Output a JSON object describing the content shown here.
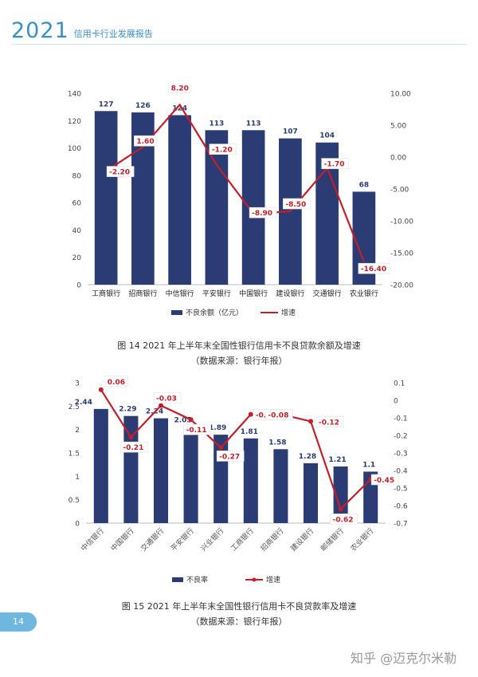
{
  "header": {
    "year": "2021",
    "report_title": "信用卡行业发展报告"
  },
  "colors": {
    "bar": "#2b3b74",
    "line": "#c0202b",
    "accent": "#3a8fc6"
  },
  "chart_data": [
    {
      "type": "bar",
      "categories": [
        "工商银行",
        "招商银行",
        "中信银行",
        "平安银行",
        "中国银行",
        "建设银行",
        "交通银行",
        "农业银行"
      ],
      "series": [
        {
          "name": "不良余额（亿元）",
          "type": "bar",
          "axis": "left",
          "values": [
            127,
            126,
            124,
            113,
            113,
            107,
            104,
            68
          ],
          "labels": [
            "127",
            "126",
            "124",
            "113",
            "113",
            "107",
            "104",
            "68"
          ]
        },
        {
          "name": "增速",
          "type": "line",
          "axis": "right",
          "values": [
            -2.2,
            1.6,
            8.2,
            -1.2,
            -8.9,
            -8.5,
            -1.7,
            -16.4
          ],
          "labels": [
            "-2.20",
            "1.60",
            "8.20",
            "-1.20",
            "-8.90",
            "-8.50",
            "-1.70",
            "-16.40"
          ]
        }
      ],
      "ylim": [
        0,
        140
      ],
      "yticks": [
        "0",
        "20",
        "40",
        "60",
        "80",
        "100",
        "120",
        "140"
      ],
      "y2lim": [
        -20,
        10
      ],
      "y2ticks": [
        "-20.00",
        "-15.00",
        "-10.00",
        "-5.00",
        "0.00",
        "5.00",
        "10.00"
      ],
      "legend": "bottom",
      "caption": "图 14 2021 年上半年末全国性银行信用卡不良贷款余额及增速",
      "source": "（数据来源：银行年报）"
    },
    {
      "type": "bar",
      "categories": [
        "中信银行",
        "中国银行",
        "交通银行",
        "平安银行",
        "兴业银行",
        "工商银行",
        "招商银行",
        "建设银行",
        "邮储银行",
        "农业银行"
      ],
      "series": [
        {
          "name": "不良率",
          "type": "bar",
          "axis": "left",
          "values": [
            2.44,
            2.29,
            2.24,
            2.05,
            1.89,
            1.81,
            1.58,
            1.28,
            1.21,
            1.1
          ],
          "labels": [
            "2.44",
            "2.29",
            "2.24",
            "2.05",
            "1.89",
            "1.81",
            "1.58",
            "1.28",
            "1.21",
            "1.1"
          ]
        },
        {
          "name": "增速",
          "type": "line",
          "axis": "right",
          "values": [
            0.06,
            -0.21,
            -0.03,
            -0.11,
            -0.27,
            -0.08,
            -0.08,
            -0.12,
            -0.62,
            -0.45
          ],
          "labels": [
            "0.06",
            "-0.21",
            "-0.03",
            "-0.11",
            "-0.27",
            "-0.08",
            "-0.08",
            "-0.12",
            "-0.62",
            "-0.45"
          ]
        }
      ],
      "ylim": [
        0,
        3
      ],
      "yticks": [
        "0",
        "0.5",
        "1",
        "1.5",
        "2",
        "2.5",
        "3"
      ],
      "y2lim": [
        -0.7,
        0.1
      ],
      "y2ticks": [
        "-0.7",
        "-0.6",
        "-0.5",
        "-0.4",
        "-0.3",
        "-0.2",
        "-0.1",
        "0",
        "0.1"
      ],
      "legend": "bottom",
      "caption": "图 15 2021 年上半年末全国性银行信用卡不良贷款率及增速",
      "source": "（数据来源：银行年报）"
    }
  ],
  "page_number": "14",
  "watermark": "知乎 @迈克尔米勒"
}
